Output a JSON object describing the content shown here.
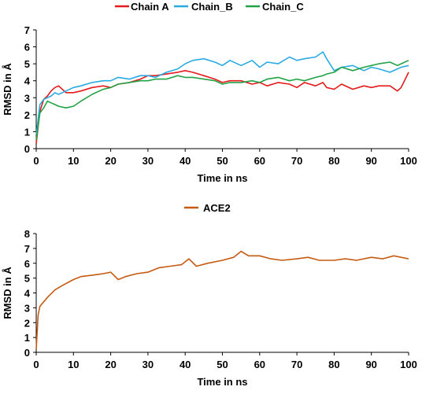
{
  "chart_data": [
    {
      "type": "line",
      "xlabel": "Time in ns",
      "ylabel": "RMSD in Å",
      "xlim": [
        0,
        100
      ],
      "ylim": [
        0,
        7
      ],
      "xticks": [
        0,
        10,
        20,
        30,
        40,
        50,
        60,
        70,
        80,
        90,
        100
      ],
      "yticks": [
        0,
        1,
        2,
        3,
        4,
        5,
        6,
        7
      ],
      "x": [
        0,
        1,
        2,
        3,
        4,
        5,
        6,
        8,
        10,
        12,
        15,
        18,
        20,
        22,
        25,
        28,
        30,
        32,
        35,
        38,
        40,
        42,
        45,
        48,
        50,
        52,
        55,
        58,
        60,
        62,
        65,
        68,
        70,
        72,
        75,
        77,
        78,
        80,
        82,
        85,
        88,
        90,
        92,
        95,
        97,
        98,
        100
      ],
      "legend_position": "top",
      "series": [
        {
          "name": "Chain A",
          "color": "#e41a1c",
          "values": [
            0.3,
            2.2,
            2.9,
            3.1,
            3.4,
            3.6,
            3.7,
            3.3,
            3.3,
            3.4,
            3.6,
            3.7,
            3.6,
            3.8,
            3.9,
            4.1,
            4.3,
            4.3,
            4.4,
            4.5,
            4.6,
            4.5,
            4.3,
            4.1,
            3.9,
            4.0,
            4.0,
            3.8,
            3.9,
            3.7,
            3.9,
            3.8,
            3.6,
            3.9,
            3.7,
            3.9,
            3.6,
            3.5,
            3.8,
            3.5,
            3.7,
            3.6,
            3.7,
            3.7,
            3.4,
            3.6,
            4.5
          ]
        },
        {
          "name": "Chain_B",
          "color": "#29abe2",
          "values": [
            0.8,
            2.6,
            2.9,
            3.0,
            3.1,
            3.3,
            3.2,
            3.4,
            3.6,
            3.7,
            3.9,
            4.0,
            4.0,
            4.2,
            4.1,
            4.3,
            4.3,
            4.2,
            4.5,
            4.7,
            5.0,
            5.2,
            5.3,
            5.1,
            4.9,
            5.2,
            4.9,
            5.2,
            4.8,
            5.1,
            5.0,
            5.4,
            5.2,
            5.3,
            5.4,
            5.7,
            5.3,
            4.6,
            4.8,
            4.9,
            4.6,
            4.8,
            4.7,
            4.5,
            4.7,
            4.8,
            4.9
          ]
        },
        {
          "name": "Chain_C",
          "color": "#21a345",
          "values": [
            0.5,
            2.1,
            2.4,
            2.8,
            2.7,
            2.6,
            2.5,
            2.4,
            2.5,
            2.8,
            3.2,
            3.5,
            3.6,
            3.8,
            3.9,
            4.0,
            4.0,
            4.1,
            4.1,
            4.3,
            4.2,
            4.2,
            4.1,
            4.0,
            3.8,
            3.9,
            3.9,
            4.0,
            3.9,
            4.1,
            4.2,
            4.0,
            4.1,
            4.0,
            4.2,
            4.3,
            4.4,
            4.5,
            4.8,
            4.6,
            4.8,
            4.9,
            5.0,
            5.1,
            4.9,
            5.0,
            5.2
          ]
        }
      ]
    },
    {
      "type": "line",
      "xlabel": "Time in ns",
      "ylabel": "RMSD in Å",
      "xlim": [
        0,
        100
      ],
      "ylim": [
        0,
        8
      ],
      "xticks": [
        0,
        10,
        20,
        30,
        40,
        50,
        60,
        70,
        80,
        90,
        100
      ],
      "yticks": [
        0,
        1,
        2,
        3,
        4,
        5,
        6,
        7,
        8
      ],
      "x": [
        0,
        0.5,
        1,
        2,
        3,
        5,
        7,
        10,
        12,
        15,
        18,
        20,
        22,
        24,
        27,
        30,
        33,
        36,
        39,
        41,
        43,
        46,
        50,
        53,
        55,
        57,
        60,
        63,
        66,
        70,
        73,
        76,
        80,
        83,
        86,
        90,
        93,
        96,
        98,
        100
      ],
      "legend_position": "top",
      "series": [
        {
          "name": "ACE2",
          "color": "#c55a11",
          "values": [
            0.2,
            2.5,
            3.1,
            3.4,
            3.7,
            4.2,
            4.5,
            4.9,
            5.1,
            5.2,
            5.3,
            5.4,
            4.9,
            5.1,
            5.3,
            5.4,
            5.7,
            5.8,
            5.9,
            6.3,
            5.8,
            6.0,
            6.2,
            6.4,
            6.8,
            6.5,
            6.5,
            6.3,
            6.2,
            6.3,
            6.4,
            6.2,
            6.2,
            6.3,
            6.2,
            6.4,
            6.3,
            6.5,
            6.4,
            6.3
          ]
        }
      ]
    }
  ]
}
